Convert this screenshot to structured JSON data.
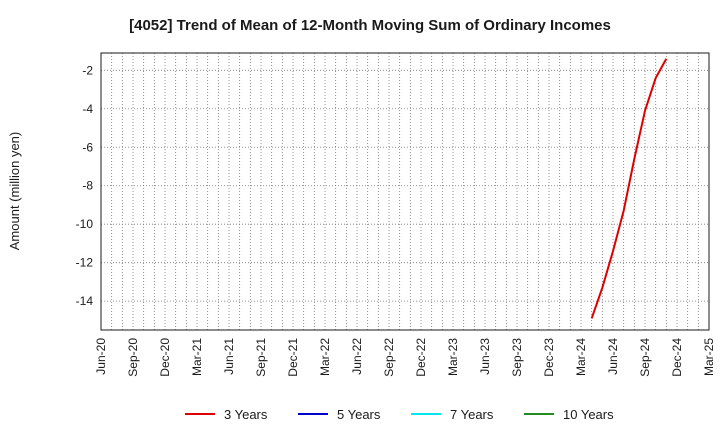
{
  "chart_data": {
    "type": "line",
    "title": "[4052]  Trend of Mean of 12-Month Moving Sum of Ordinary Incomes",
    "xlabel": "",
    "ylabel": "Amount (million yen)",
    "x_ticks": [
      "Jun-20",
      "Sep-20",
      "Dec-20",
      "Mar-21",
      "Jun-21",
      "Sep-21",
      "Dec-21",
      "Mar-22",
      "Jun-22",
      "Sep-22",
      "Dec-22",
      "Mar-23",
      "Jun-23",
      "Sep-23",
      "Dec-23",
      "Mar-24",
      "Jun-24",
      "Sep-24",
      "Dec-24",
      "Mar-25"
    ],
    "y_ticks": [
      -2,
      -4,
      -6,
      -8,
      -10,
      -12,
      -14
    ],
    "ylim": [
      -15.5,
      -1.1
    ],
    "grid": true,
    "legend_position": "bottom",
    "series": [
      {
        "name": "3 Years",
        "color": "#dd0000",
        "points": [
          {
            "x": "Apr-24",
            "y": -14.9
          },
          {
            "x": "May-24",
            "y": -13.3
          },
          {
            "x": "Jun-24",
            "y": -11.4
          },
          {
            "x": "Jul-24",
            "y": -9.3
          },
          {
            "x": "Aug-24",
            "y": -6.6
          },
          {
            "x": "Sep-24",
            "y": -4.1
          },
          {
            "x": "Oct-24",
            "y": -2.4
          },
          {
            "x": "Nov-24",
            "y": -1.4
          }
        ]
      },
      {
        "name": "5 Years",
        "color": "#0000cc",
        "points": []
      },
      {
        "name": "7 Years",
        "color": "#00e5ee",
        "points": []
      },
      {
        "name": "10 Years",
        "color": "#228b22",
        "points": []
      }
    ]
  }
}
